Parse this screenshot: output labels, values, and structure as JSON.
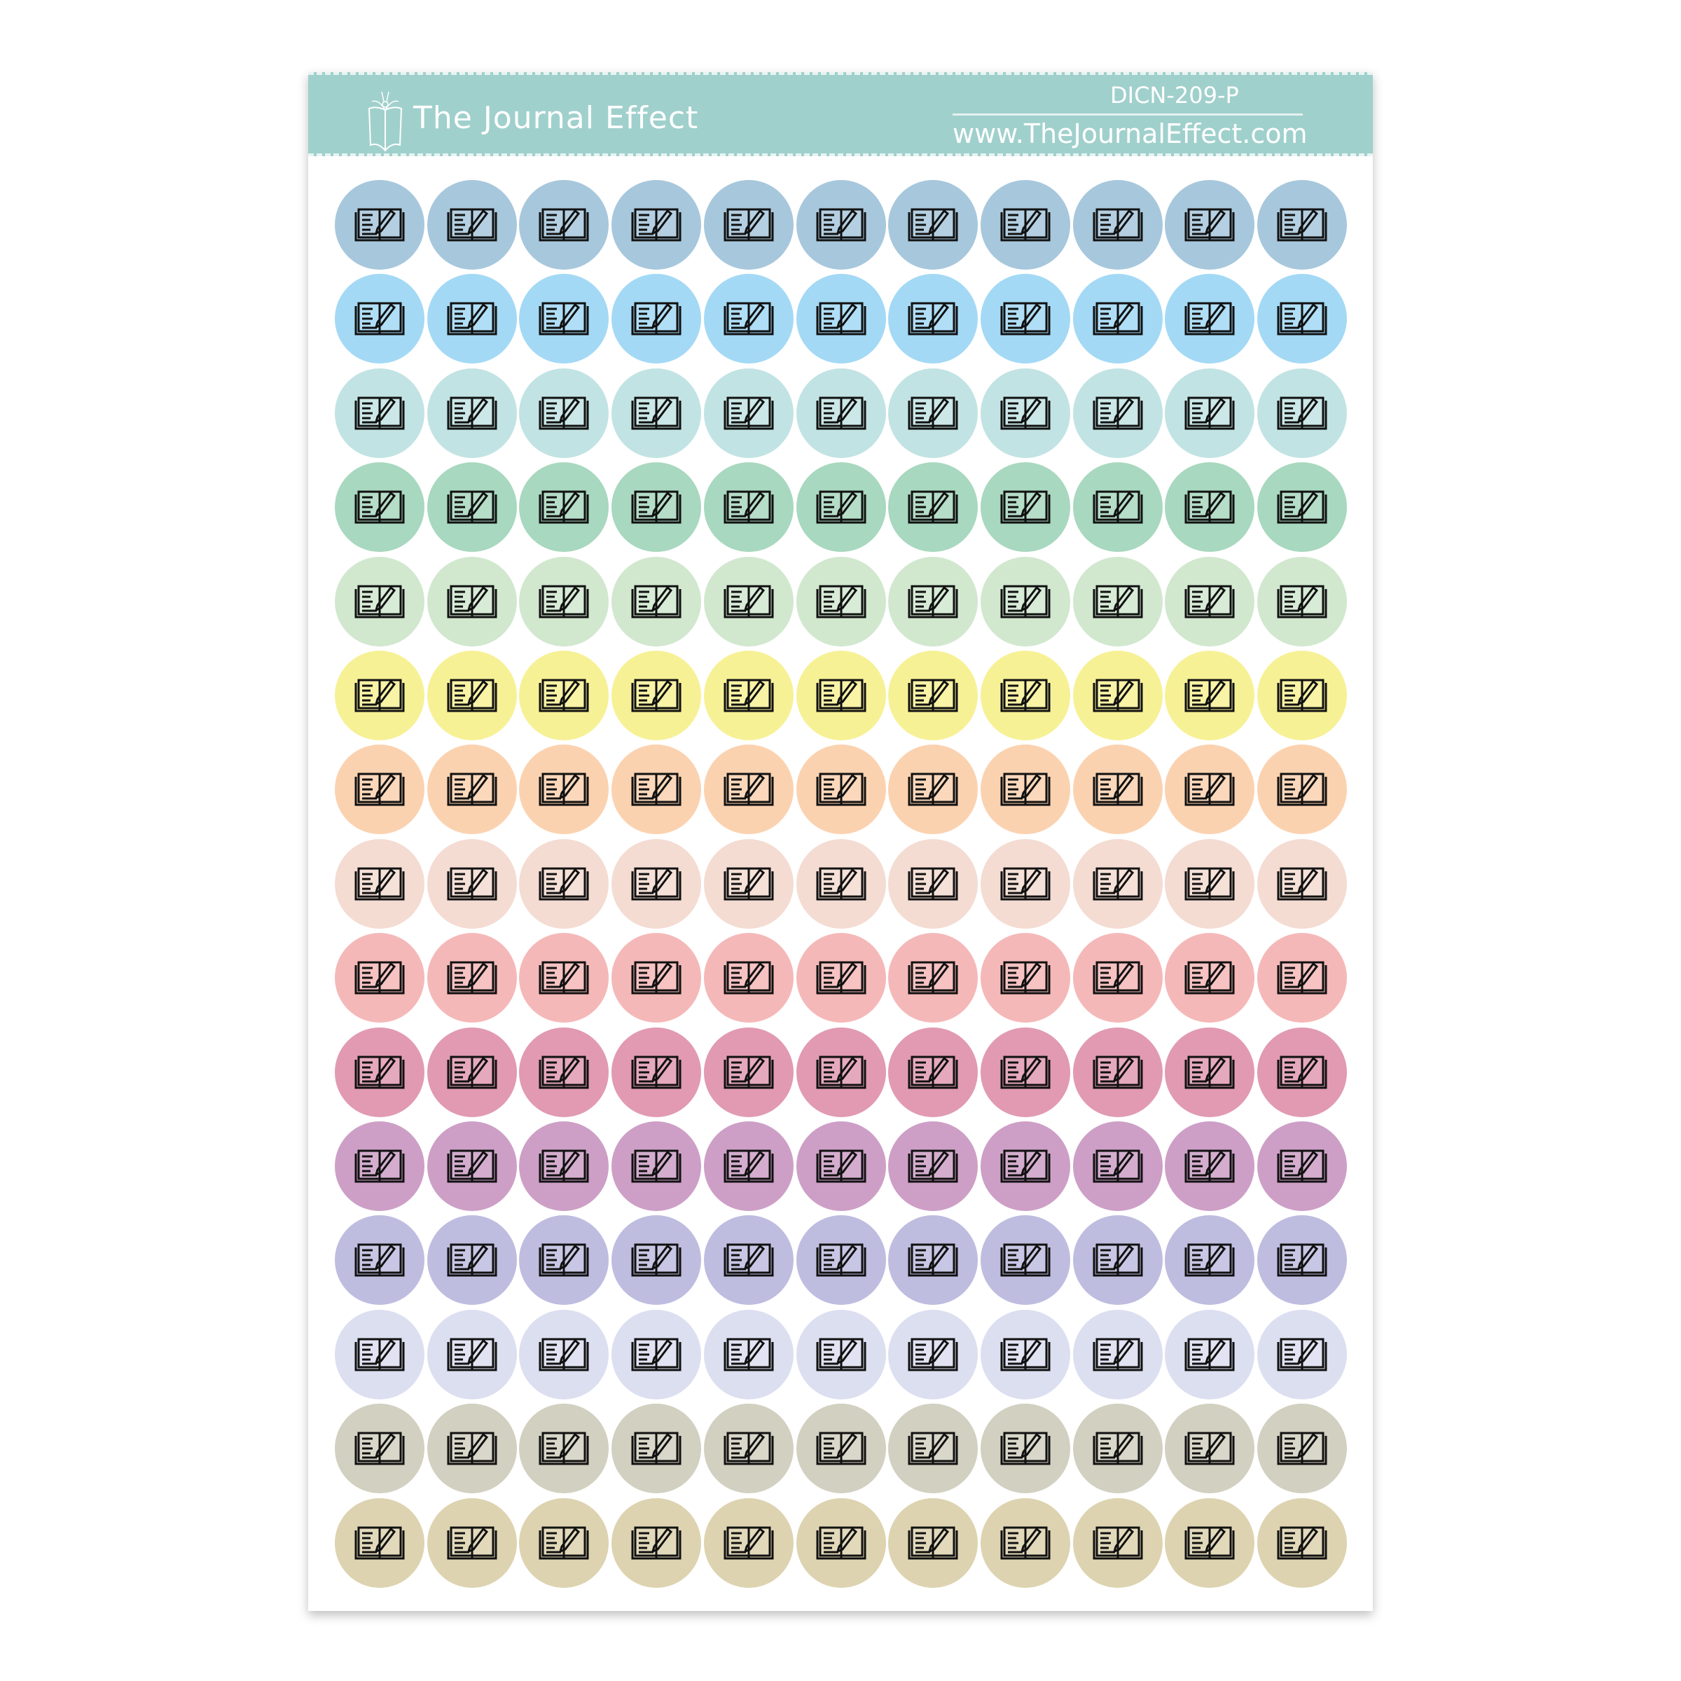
{
  "header": {
    "brand": "The Journal Effect",
    "product_code": "DICN-209-P",
    "website": "www.TheJournalEffect.com",
    "color": "#a0d0cc"
  },
  "stickers": {
    "icon": "open-journal-with-pencil-icon",
    "columns": 11,
    "row_colors": [
      "#a7c7dc",
      "#a3d9f5",
      "#c2e3e3",
      "#a8d8bf",
      "#d1e8cf",
      "#f7f196",
      "#fbd2b0",
      "#f4dcd2",
      "#f5b8b8",
      "#e19ab2",
      "#cd9fc6",
      "#bebde0",
      "#dcdff0",
      "#d2d0c0",
      "#ddd3b0"
    ]
  }
}
